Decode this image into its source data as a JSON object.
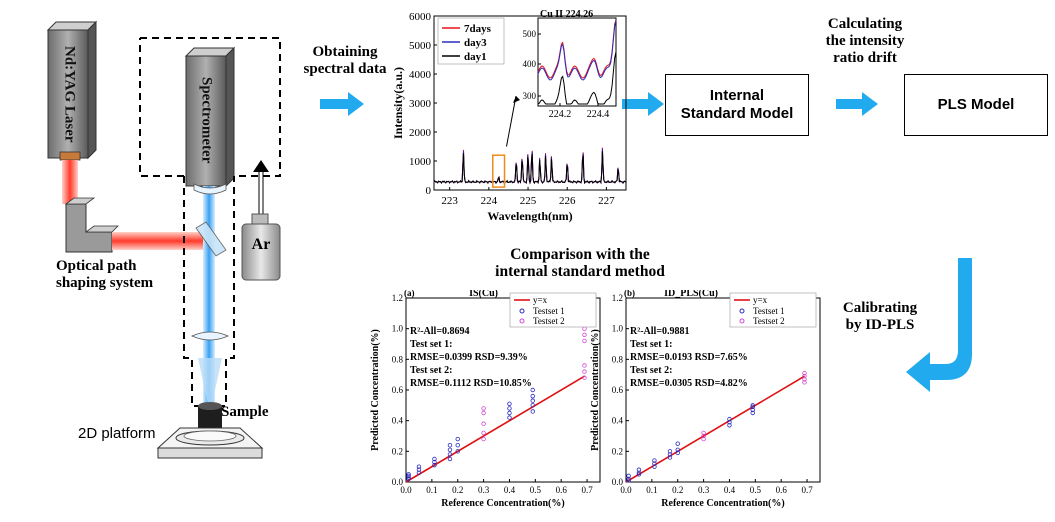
{
  "setup": {
    "laser_label": "Nd:YAG Laser",
    "spectrometer_label": "Spectrometer",
    "ar_label": "Ar",
    "optical_label_line1": "Optical path",
    "optical_label_line2": "shaping system",
    "sample_label": "Sample",
    "platform_label": "2D platform"
  },
  "flow": {
    "obtaining_line1": "Obtaining",
    "obtaining_line2": "spectral data",
    "internal_model_line1": "Internal",
    "internal_model_line2": "Standard  Model",
    "calc_line1": "Calculating",
    "calc_line2": "the intensity",
    "calc_line3": "ratio drift",
    "pls_model": "PLS Model",
    "calibrating_line1": "Calibrating",
    "calibrating_line2": "by ID-PLS",
    "comparison_line1": "Comparison with the",
    "comparison_line2": "internal standard method",
    "arrow_color": "#22aaee"
  },
  "chart_data": [
    {
      "type": "line",
      "xlabel": "Wavelength(nm)",
      "ylabel": "Intensity(a.u.)",
      "xlim": [
        222.6,
        227.5
      ],
      "ylim": [
        0,
        6000
      ],
      "xticks": [
        "223",
        "224",
        "225",
        "226",
        "227"
      ],
      "yticks": [
        "0",
        "1000",
        "2000",
        "3000",
        "4000",
        "5000",
        "6000"
      ],
      "series": [
        {
          "name": "7days",
          "color": "#e8141a"
        },
        {
          "name": "day3",
          "color": "#2b2bbf"
        },
        {
          "name": "day1",
          "color": "#000000"
        }
      ],
      "peaks": [
        {
          "x": 223.35,
          "y": 1450
        },
        {
          "x": 224.25,
          "y": 450
        },
        {
          "x": 224.7,
          "y": 1100
        },
        {
          "x": 224.85,
          "y": 1250
        },
        {
          "x": 225.0,
          "y": 1350
        },
        {
          "x": 225.1,
          "y": 1500
        },
        {
          "x": 225.3,
          "y": 1150
        },
        {
          "x": 225.45,
          "y": 1300
        },
        {
          "x": 225.6,
          "y": 1200
        },
        {
          "x": 226.0,
          "y": 1050
        },
        {
          "x": 226.4,
          "y": 1450
        },
        {
          "x": 226.9,
          "y": 1500
        },
        {
          "x": 227.3,
          "y": 850
        }
      ],
      "inset": {
        "title": "Cu II 224.26",
        "xticks": [
          "224.2",
          "224.4"
        ],
        "yticks": [
          "300",
          "400",
          "500"
        ]
      }
    },
    {
      "type": "scatter",
      "panel": "(a)",
      "title": "IS(Cu)",
      "xlabel": "Reference Concentration(%)",
      "ylabel": "Predicted  Concentration(%)",
      "xlim": [
        0,
        0.75
      ],
      "ylim": [
        0,
        1.2
      ],
      "xticks": [
        "0.0",
        "0.1",
        "0.2",
        "0.3",
        "0.4",
        "0.5",
        "0.6",
        "0.7"
      ],
      "yticks": [
        "0.0",
        "0.2",
        "0.4",
        "0.6",
        "0.8",
        "1.0",
        "1.2"
      ],
      "legend": [
        "y=x",
        "Testset 1",
        "Testset 2"
      ],
      "annotations": [
        "R²-All=0.8694",
        "Test set 1:",
        "RMSE=0.0399   RSD=9.39%",
        "Test set 2:",
        "RMSE=0.1112   RSD=10.85%"
      ],
      "groups": [
        {
          "x": 0.01,
          "y": [
            0.02,
            0.03,
            0.04,
            0.05
          ],
          "set": 1
        },
        {
          "x": 0.05,
          "y": [
            0.06,
            0.08,
            0.1
          ],
          "set": 1
        },
        {
          "x": 0.11,
          "y": [
            0.11,
            0.13,
            0.15
          ],
          "set": 1
        },
        {
          "x": 0.17,
          "y": [
            0.15,
            0.18,
            0.21,
            0.24
          ],
          "set": 1
        },
        {
          "x": 0.2,
          "y": [
            0.2,
            0.24,
            0.28
          ],
          "set": 1
        },
        {
          "x": 0.3,
          "y": [
            0.28,
            0.32,
            0.38,
            0.45,
            0.48
          ],
          "set": 2
        },
        {
          "x": 0.4,
          "y": [
            0.42,
            0.45,
            0.48,
            0.51
          ],
          "set": 1
        },
        {
          "x": 0.49,
          "y": [
            0.46,
            0.5,
            0.53,
            0.56,
            0.6
          ],
          "set": 1
        },
        {
          "x": 0.69,
          "y": [
            0.68,
            0.72,
            0.76,
            0.92,
            0.96,
            1.0,
            1.04
          ],
          "set": 2
        }
      ]
    },
    {
      "type": "scatter",
      "panel": "(b)",
      "title": "ID_PLS(Cu)",
      "xlabel": "Reference Concentration(%)",
      "ylabel": "Predicted  Concentration(%)",
      "xlim": [
        0,
        0.75
      ],
      "ylim": [
        0,
        1.2
      ],
      "xticks": [
        "0.0",
        "0.1",
        "0.2",
        "0.3",
        "0.4",
        "0.5",
        "0.6",
        "0.7"
      ],
      "yticks": [
        "0.0",
        "0.2",
        "0.4",
        "0.6",
        "0.8",
        "1.0",
        "1.2"
      ],
      "legend": [
        "y=x",
        "Testset 1",
        "Testset 2"
      ],
      "annotations": [
        "R²-All=0.9881",
        "Test set 1:",
        "RMSE=0.0193   RSD=7.65%",
        "Test set 2:",
        "RMSE=0.0305   RSD=4.82%"
      ],
      "groups": [
        {
          "x": 0.01,
          "y": [
            0.01,
            0.02,
            0.04
          ],
          "set": 1
        },
        {
          "x": 0.05,
          "y": [
            0.05,
            0.06,
            0.08
          ],
          "set": 1
        },
        {
          "x": 0.11,
          "y": [
            0.1,
            0.12,
            0.14
          ],
          "set": 1
        },
        {
          "x": 0.17,
          "y": [
            0.16,
            0.18,
            0.2
          ],
          "set": 1
        },
        {
          "x": 0.2,
          "y": [
            0.19,
            0.21,
            0.25
          ],
          "set": 1
        },
        {
          "x": 0.3,
          "y": [
            0.28,
            0.3,
            0.32
          ],
          "set": 2
        },
        {
          "x": 0.4,
          "y": [
            0.37,
            0.39,
            0.41
          ],
          "set": 1
        },
        {
          "x": 0.49,
          "y": [
            0.45,
            0.47,
            0.49,
            0.5
          ],
          "set": 1
        },
        {
          "x": 0.69,
          "y": [
            0.65,
            0.67,
            0.69,
            0.71
          ],
          "set": 2
        }
      ]
    }
  ]
}
